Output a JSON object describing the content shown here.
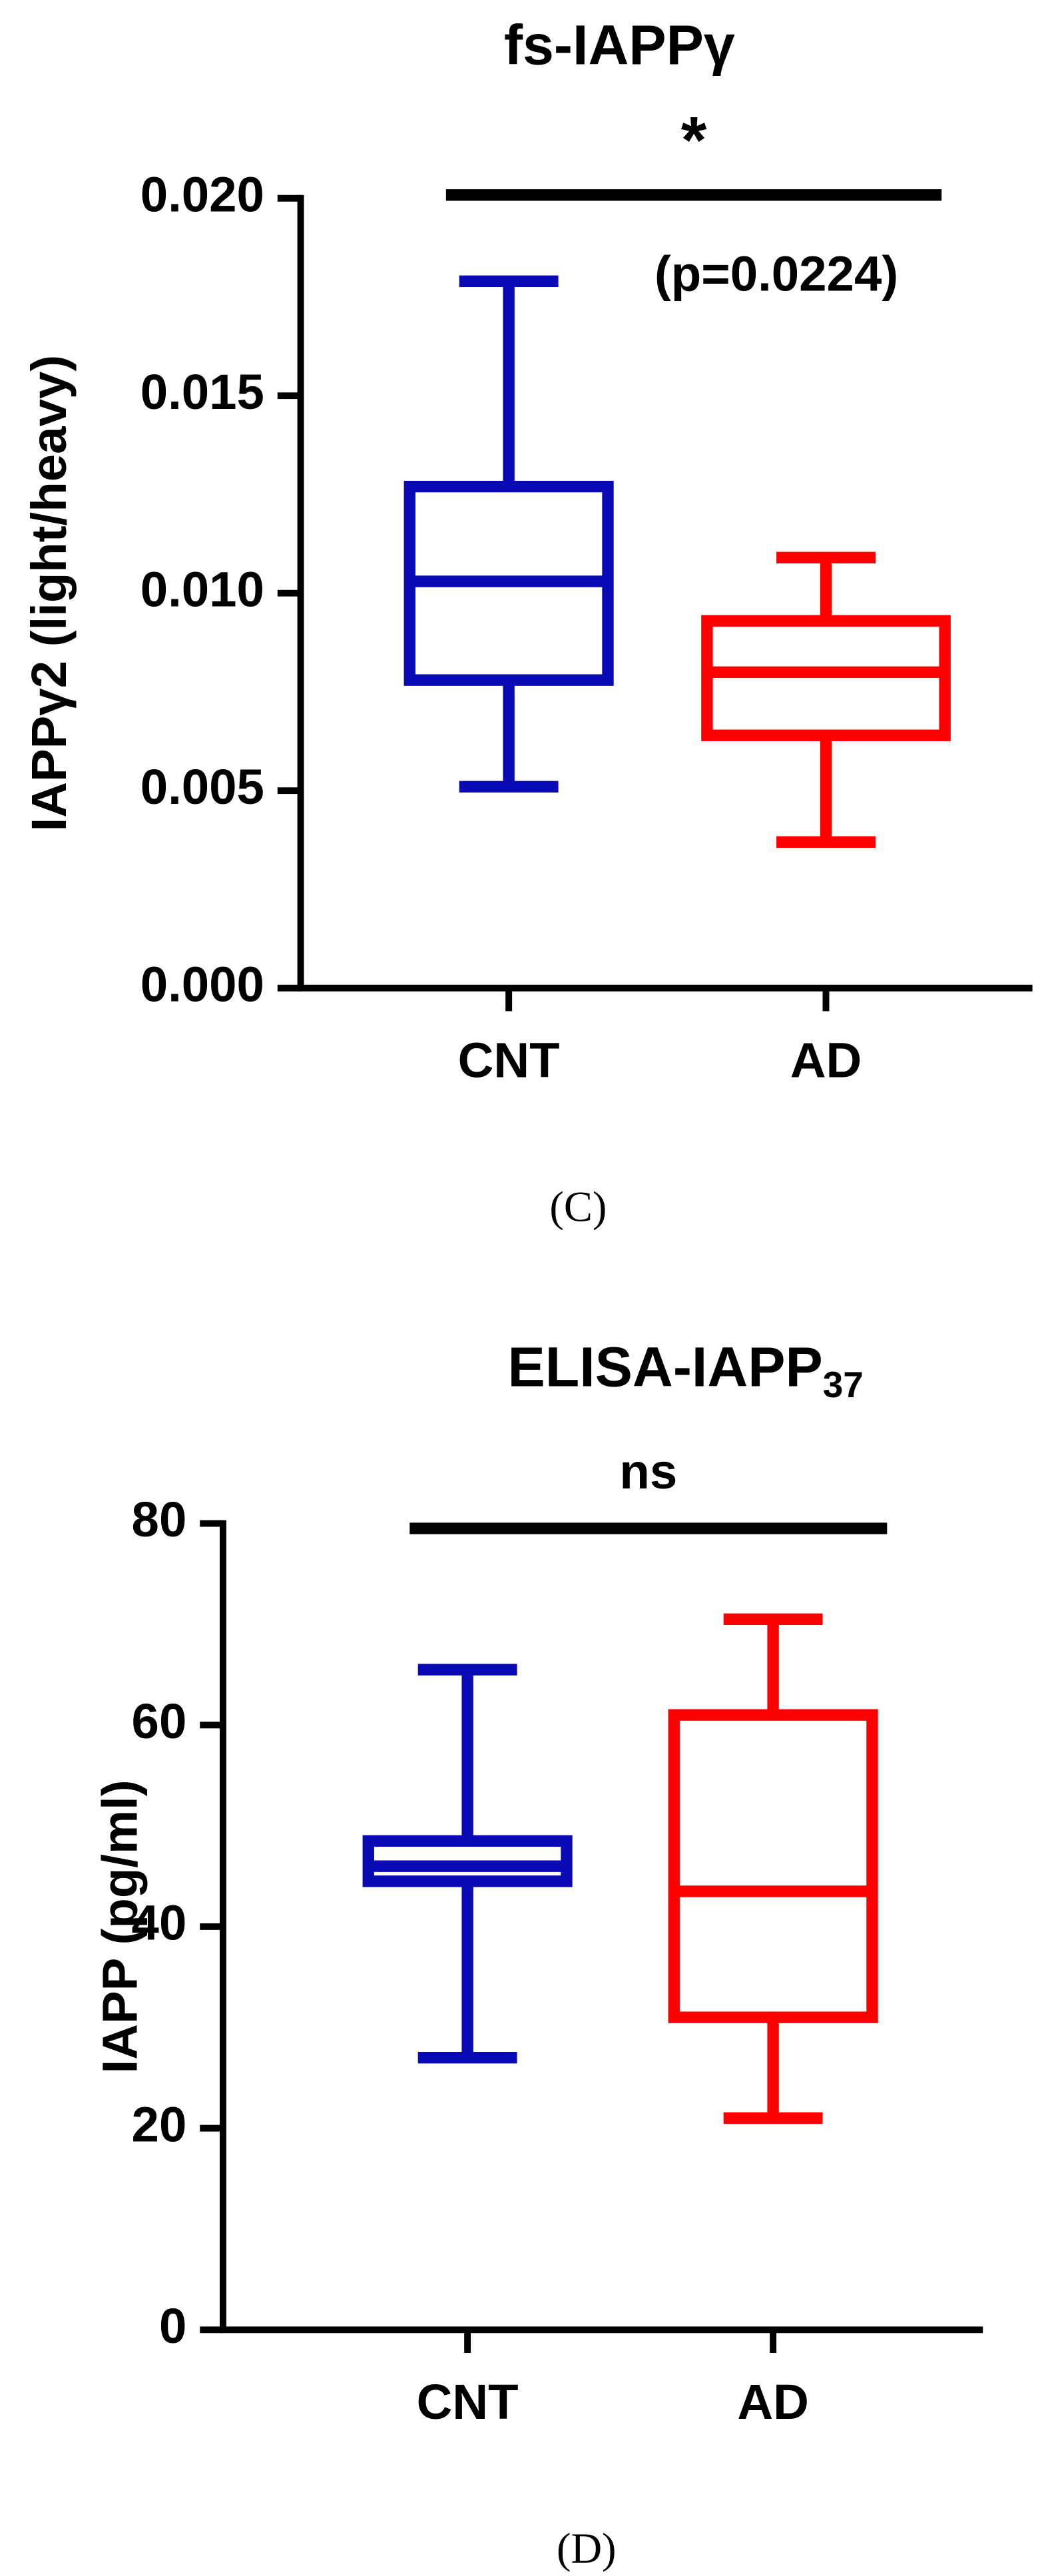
{
  "chart_data": [
    {
      "type": "box",
      "title": "fs-IAPPγ",
      "y_label": "IAPPγ2 (light/heavy)",
      "caption": "(C)",
      "categories": [
        "CNT",
        "AD"
      ],
      "colors": [
        "#0a0ab4",
        "#ff0000"
      ],
      "stats": [
        {
          "min": 0.0051,
          "q1": 0.0078,
          "median": 0.0103,
          "q3": 0.0127,
          "max": 0.0179
        },
        {
          "min": 0.0037,
          "q1": 0.0064,
          "median": 0.008,
          "q3": 0.0093,
          "max": 0.0109
        }
      ],
      "ylim": [
        0,
        0.02
      ],
      "yticks": [
        {
          "value": 0,
          "label": "0.000"
        },
        {
          "value": 0.005,
          "label": "0.005"
        },
        {
          "value": 0.01,
          "label": "0.010"
        },
        {
          "value": 0.015,
          "label": "0.015"
        },
        {
          "value": 0.02,
          "label": "0.020"
        }
      ],
      "significance": "*",
      "p_value": "(p=0.0224)"
    },
    {
      "type": "box",
      "title": "ELISA-IAPP",
      "title_subscript": "37",
      "y_label": "IAPP (pg/ml)",
      "caption": "(D)",
      "categories": [
        "CNT",
        "AD"
      ],
      "colors": [
        "#0a0ab4",
        "#ff0000"
      ],
      "stats": [
        {
          "min": 27,
          "q1": 44.5,
          "median": 46,
          "q3": 48.5,
          "max": 65.5
        },
        {
          "min": 21,
          "q1": 31,
          "median": 43.5,
          "q3": 61,
          "max": 70.5
        }
      ],
      "ylim": [
        0,
        80
      ],
      "yticks": [
        0,
        20,
        40,
        60,
        80
      ],
      "significance": "ns"
    }
  ]
}
